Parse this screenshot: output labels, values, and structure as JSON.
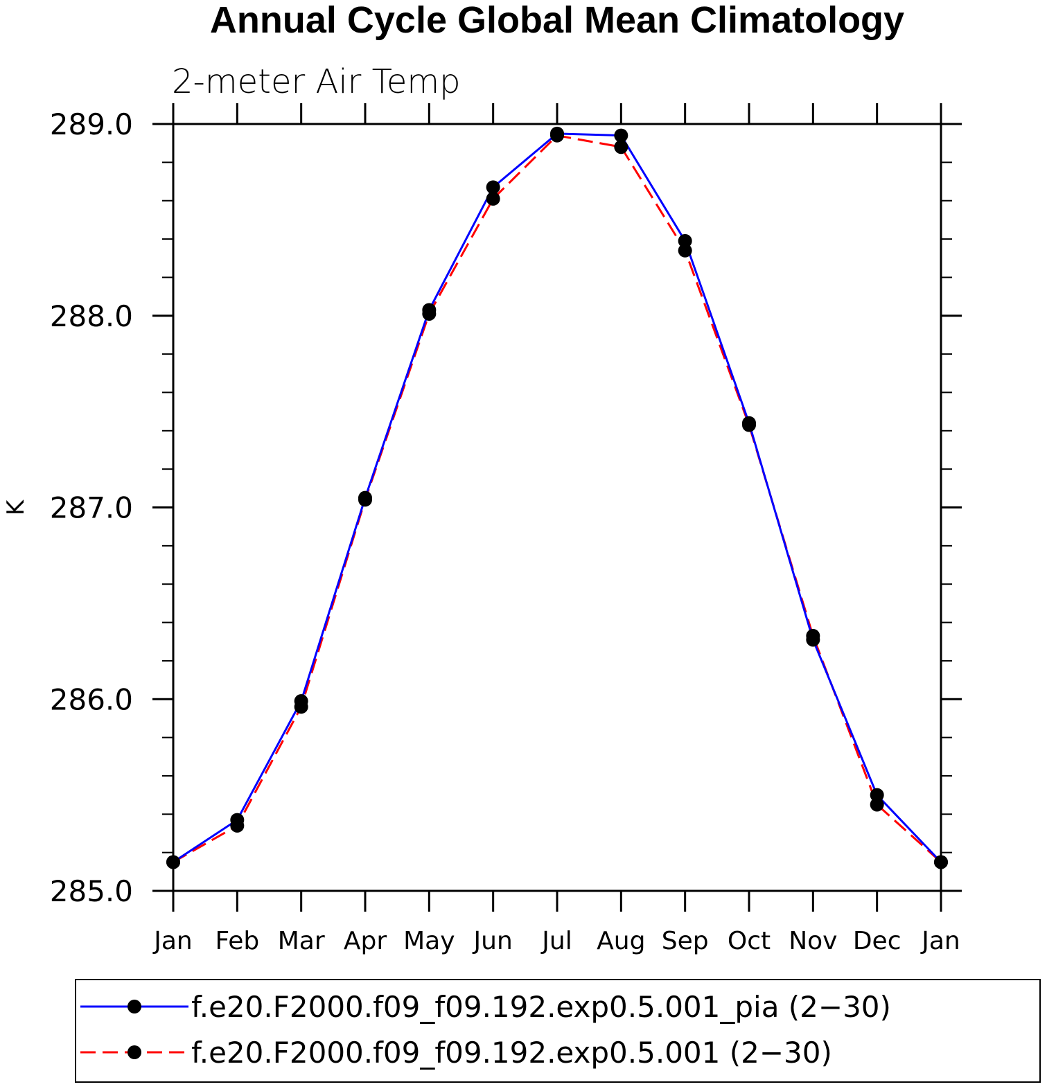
{
  "chart_data": {
    "type": "line",
    "title": "Annual Cycle Global Mean Climatology",
    "subtitle": "2-meter Air Temp",
    "ylabel": "K",
    "xlabel": "",
    "categories": [
      "Jan",
      "Feb",
      "Mar",
      "Apr",
      "May",
      "Jun",
      "Jul",
      "Aug",
      "Sep",
      "Oct",
      "Nov",
      "Dec",
      "Jan"
    ],
    "ylim": [
      285.0,
      289.0
    ],
    "yticks": [
      "285.0",
      "286.0",
      "287.0",
      "288.0",
      "289.0"
    ],
    "series": [
      {
        "name": "f.e20.F2000.f09_f09.192.exp0.5.001_pia (2−30)",
        "color": "#0000ff",
        "style": "solid",
        "marker": "filled-circle",
        "values": [
          285.15,
          285.37,
          285.99,
          287.05,
          288.03,
          288.67,
          288.95,
          288.94,
          288.39,
          287.44,
          286.31,
          285.5,
          285.15
        ]
      },
      {
        "name": "f.e20.F2000.f09_f09.192.exp0.5.001 (2−30)",
        "color": "#ff0000",
        "style": "dashed",
        "marker": "filled-circle",
        "values": [
          285.15,
          285.34,
          285.96,
          287.04,
          288.01,
          288.61,
          288.94,
          288.88,
          288.34,
          287.43,
          286.33,
          285.45,
          285.15
        ]
      }
    ],
    "grid": false,
    "legend_position": "bottom"
  }
}
